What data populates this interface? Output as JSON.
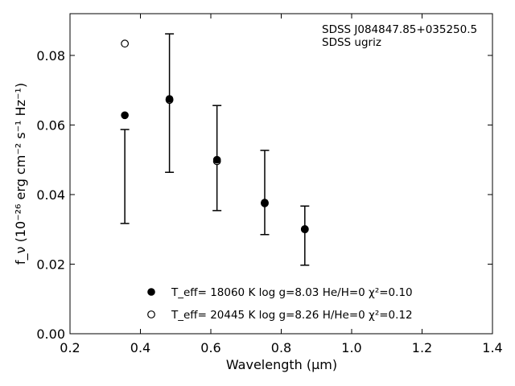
{
  "chart_data": {
    "type": "scatter",
    "xlabel": "Wavelength (μm)",
    "ylabel": "f_ν (10⁻²⁶ erg cm⁻² s⁻¹ Hz⁻¹)",
    "xlim": [
      0.2,
      1.4
    ],
    "ylim": [
      0.0,
      0.092
    ],
    "xticks": [
      "0.2",
      "0.4",
      "0.6",
      "0.8",
      "1.0",
      "1.2",
      "1.4"
    ],
    "yticks": [
      "0.00",
      "0.02",
      "0.04",
      "0.06",
      "0.08"
    ],
    "annotation": [
      "SDSS J084847.85+035250.5",
      "SDSS ugriz"
    ],
    "observed": {
      "x": [
        0.3557,
        0.4825,
        0.6175,
        0.7531,
        0.867
      ],
      "y": [
        0.0452,
        0.0663,
        0.0505,
        0.0406,
        0.0282
      ],
      "yerr": [
        0.0135,
        0.0199,
        0.0151,
        0.0121,
        0.0085
      ]
    },
    "series": [
      {
        "name": "T_eff= 18060 K  log g=8.03  He/H=0  χ²=0.10",
        "marker": "filled-circle",
        "x": [
          0.3557,
          0.4825,
          0.6175,
          0.7531,
          0.867
        ],
        "y": [
          0.0628,
          0.0675,
          0.05,
          0.0377,
          0.0301
        ]
      },
      {
        "name": "T_eff= 20445 K  log g=8.26  H/He=0  χ²=0.12",
        "marker": "open-circle",
        "x": [
          0.3557,
          0.4825,
          0.6175,
          0.7531,
          0.867
        ],
        "y": [
          0.0834,
          0.0672,
          0.0496,
          0.0375,
          0.03
        ]
      }
    ],
    "legend_position": "bottom-center",
    "grid": false
  }
}
